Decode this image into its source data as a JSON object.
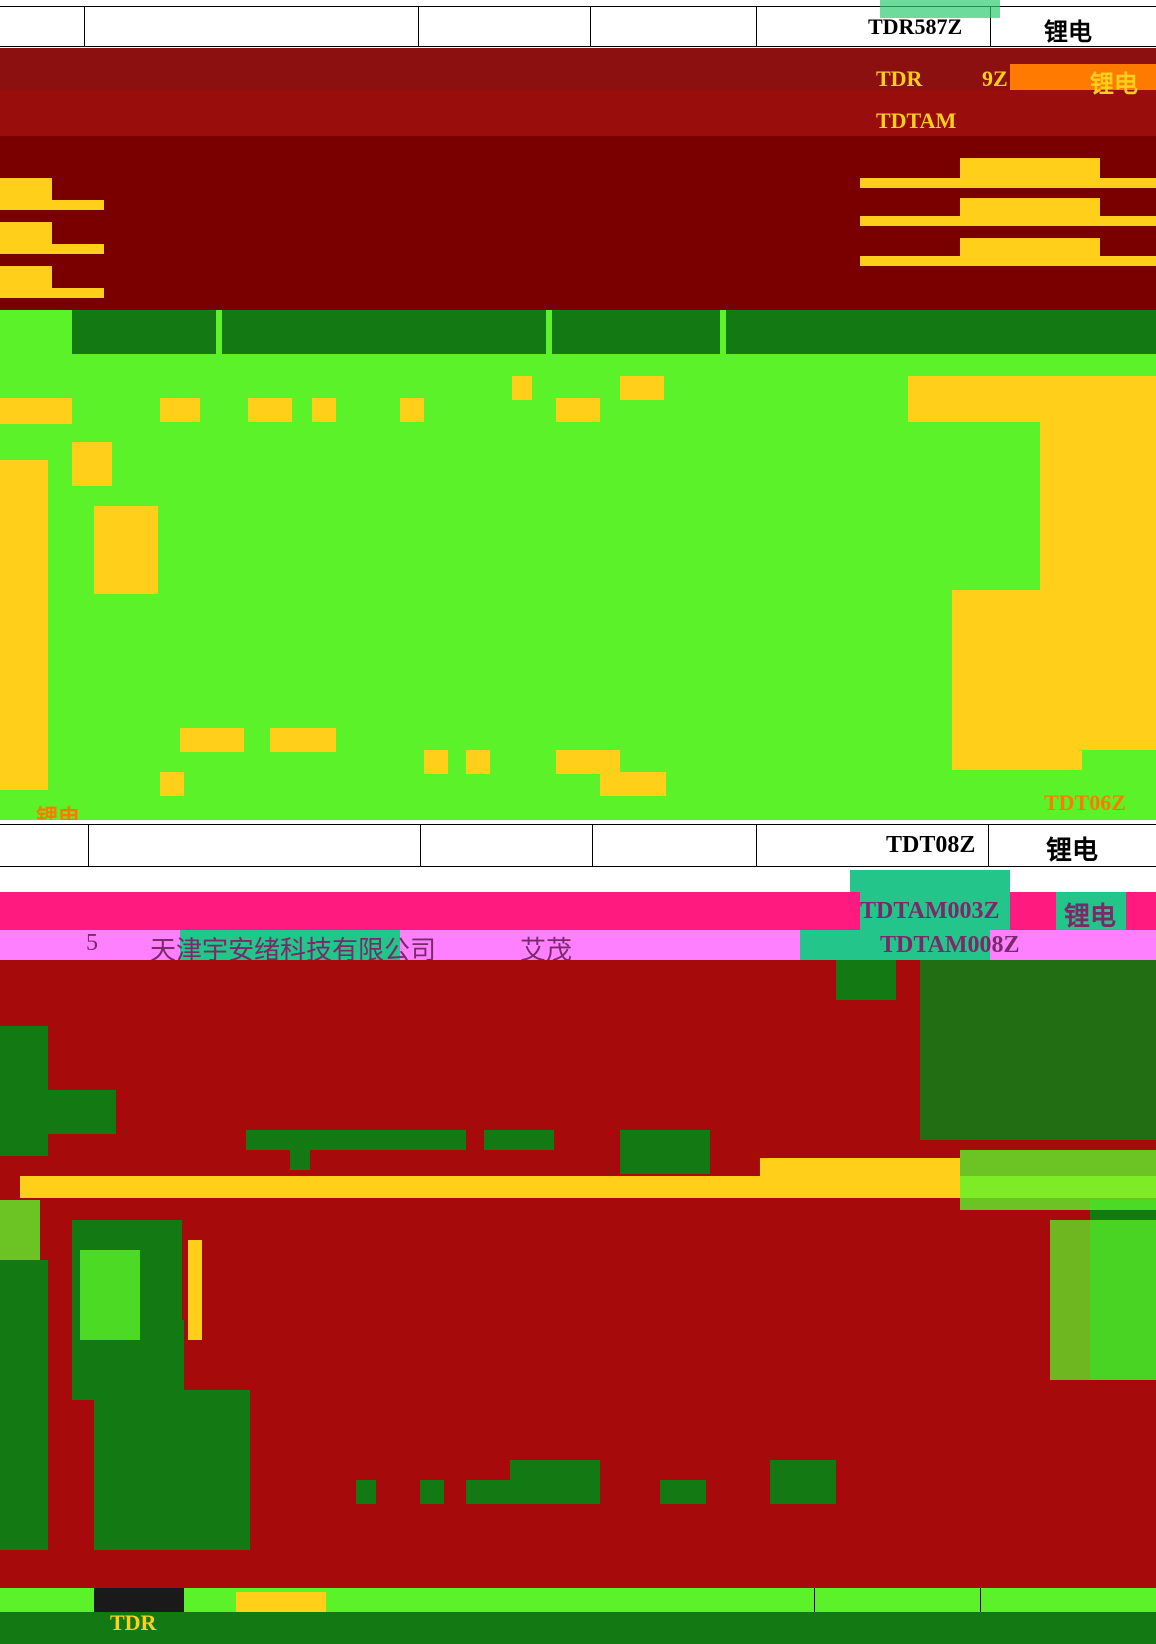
{
  "codes": {
    "top_row": "TDR587Z",
    "row_2": "TDR",
    "row_2b": "9Z",
    "row_3": "TDTAM",
    "mid_row": "TDT08Z",
    "row_pink1": "TDTAM003Z",
    "row_pink2": "TDTAM008Z",
    "orange_code": "TDT06Z",
    "bottom_code": "TDR"
  },
  "type_label": "锂电",
  "row_number": "5",
  "company_name": "天津宇安绪科技有限公司",
  "person_name": "艾茂",
  "colors": {
    "dark_red": "#7a0000",
    "red": "#a60a0a",
    "green_bright": "#5cf229",
    "green_dark": "#137a13",
    "yellow": "#ffcf1a",
    "pink": "#ff1a80",
    "magenta": "#ff80ff",
    "teal": "#23c58a"
  }
}
